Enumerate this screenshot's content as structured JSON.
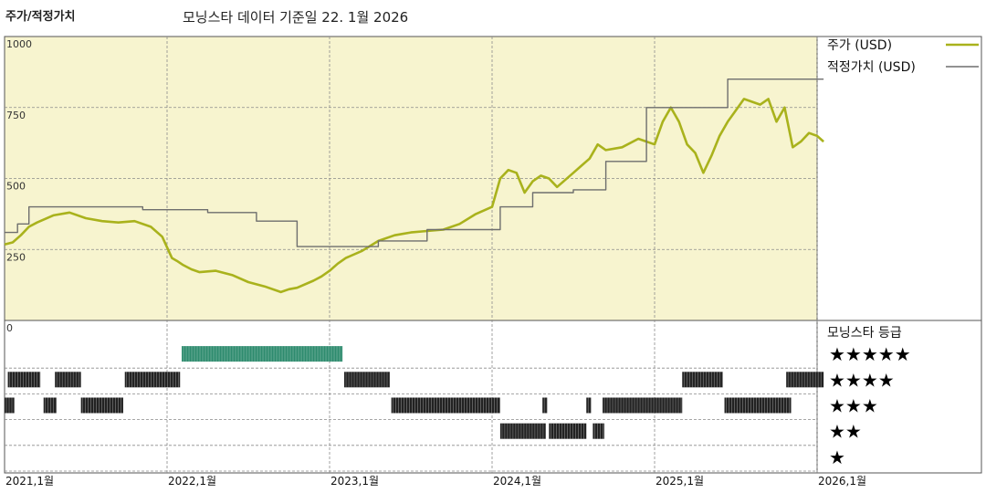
{
  "header": {
    "title": "주가/적정가치",
    "subtitle": "모닝스타 데이터 기준일 22. 1월 2026"
  },
  "colors": {
    "price": "#a9b21c",
    "fair_value": "#6e6e6e",
    "plot_bg": "#f7f4cf",
    "grid": "#8a8a8a",
    "five_star": "#2e8b6e",
    "rating_bar": "#222222"
  },
  "chart_data": [
    {
      "type": "line",
      "title": "주가/적정가치",
      "subtitle": "모닝스타 데이터 기준일 22. 1월 2026",
      "ylim": [
        0,
        1000
      ],
      "yticks": [
        0,
        250,
        500,
        750,
        1000
      ],
      "ytick_labels": [
        "0",
        "250",
        "500",
        "750",
        "1000"
      ],
      "xlim": [
        2021.0,
        2026.0
      ],
      "x_ticks": [
        2021,
        2022,
        2023,
        2024,
        2025,
        2026
      ],
      "x_tick_labels": [
        "2021,1월",
        "2022,1월",
        "2023,1월",
        "2024,1월",
        "2025,1월",
        "2026,1월"
      ],
      "grid": true,
      "legend_position": "top-right",
      "series": [
        {
          "name": "주가 (USD)",
          "x": [
            2021.0,
            2021.05,
            2021.1,
            2021.15,
            2021.2,
            2021.3,
            2021.4,
            2021.5,
            2021.6,
            2021.7,
            2021.8,
            2021.9,
            2021.97,
            2022.03,
            2022.06,
            2022.1,
            2022.15,
            2022.2,
            2022.3,
            2022.4,
            2022.5,
            2022.6,
            2022.7,
            2022.75,
            2022.8,
            2022.9,
            2022.95,
            2023.0,
            2023.05,
            2023.1,
            2023.2,
            2023.3,
            2023.4,
            2023.5,
            2023.6,
            2023.7,
            2023.8,
            2023.9,
            2024.0,
            2024.05,
            2024.1,
            2024.15,
            2024.2,
            2024.25,
            2024.3,
            2024.35,
            2024.4,
            2024.5,
            2024.6,
            2024.65,
            2024.7,
            2024.8,
            2024.9,
            2025.0,
            2025.05,
            2025.1,
            2025.15,
            2025.2,
            2025.25,
            2025.3,
            2025.35,
            2025.4,
            2025.45,
            2025.5,
            2025.55,
            2025.6,
            2025.65,
            2025.7,
            2025.75,
            2025.8,
            2025.85,
            2025.9,
            2025.95,
            2026.0,
            2026.04
          ],
          "values": [
            268,
            275,
            300,
            330,
            345,
            370,
            380,
            360,
            350,
            345,
            350,
            330,
            295,
            220,
            210,
            195,
            180,
            170,
            175,
            160,
            135,
            120,
            100,
            110,
            115,
            140,
            155,
            175,
            200,
            220,
            245,
            280,
            300,
            310,
            315,
            320,
            340,
            375,
            400,
            500,
            530,
            520,
            450,
            490,
            510,
            500,
            470,
            520,
            570,
            620,
            600,
            610,
            640,
            620,
            700,
            750,
            700,
            620,
            590,
            520,
            580,
            650,
            700,
            740,
            780,
            770,
            760,
            780,
            700,
            750,
            610,
            630,
            660,
            650,
            630
          ]
        },
        {
          "name": "적정가치 (USD)",
          "x": [
            2021.0,
            2021.08,
            2021.08,
            2021.15,
            2021.15,
            2021.85,
            2021.85,
            2022.25,
            2022.25,
            2022.55,
            2022.55,
            2022.8,
            2022.8,
            2023.3,
            2023.3,
            2023.6,
            2023.6,
            2024.05,
            2024.05,
            2024.25,
            2024.25,
            2024.5,
            2024.5,
            2024.7,
            2024.7,
            2024.95,
            2024.95,
            2025.45,
            2025.45,
            2026.04
          ],
          "values": [
            310,
            310,
            340,
            340,
            400,
            400,
            390,
            390,
            380,
            380,
            350,
            350,
            260,
            260,
            280,
            280,
            320,
            320,
            400,
            400,
            450,
            450,
            460,
            460,
            560,
            560,
            750,
            750,
            850,
            850
          ]
        }
      ]
    },
    {
      "type": "heatmap",
      "title": "모닝스타 등급",
      "rows": [
        "★★★★★",
        "★★★★",
        "★★★",
        "★★",
        "★"
      ],
      "periods": [
        {
          "row": 0,
          "start": 2022.09,
          "end": 2023.08
        },
        {
          "row": 1,
          "start": 2021.02,
          "end": 2021.22
        },
        {
          "row": 1,
          "start": 2021.31,
          "end": 2021.47
        },
        {
          "row": 1,
          "start": 2021.74,
          "end": 2022.08
        },
        {
          "row": 1,
          "start": 2023.09,
          "end": 2023.37
        },
        {
          "row": 1,
          "start": 2025.17,
          "end": 2025.42
        },
        {
          "row": 1,
          "start": 2025.81,
          "end": 2026.04
        },
        {
          "row": 2,
          "start": 2021.0,
          "end": 2021.06
        },
        {
          "row": 2,
          "start": 2021.24,
          "end": 2021.32
        },
        {
          "row": 2,
          "start": 2021.47,
          "end": 2021.73
        },
        {
          "row": 2,
          "start": 2023.38,
          "end": 2024.05
        },
        {
          "row": 2,
          "start": 2024.31,
          "end": 2024.34
        },
        {
          "row": 2,
          "start": 2024.58,
          "end": 2024.61
        },
        {
          "row": 2,
          "start": 2024.68,
          "end": 2025.17
        },
        {
          "row": 2,
          "start": 2025.43,
          "end": 2025.84
        },
        {
          "row": 3,
          "start": 2024.05,
          "end": 2024.33
        },
        {
          "row": 3,
          "start": 2024.35,
          "end": 2024.58
        },
        {
          "row": 3,
          "start": 2024.62,
          "end": 2024.69
        }
      ]
    }
  ]
}
